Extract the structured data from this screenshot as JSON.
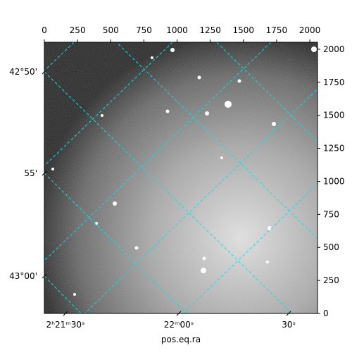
{
  "chart_data": {
    "type": "image",
    "xlabel": "pos.eq.ra",
    "xlim": [
      0,
      2058
    ],
    "ylim": [
      0,
      2053
    ],
    "xticks": [
      0,
      250,
      500,
      750,
      1000,
      1250,
      1500,
      1750,
      2000
    ],
    "yticks": [
      0,
      250,
      500,
      750,
      1000,
      1250,
      1500,
      1750,
      2000
    ],
    "ra_ticks": [
      {
        "value": 159,
        "label": "2ʰ21ᵐ30ˢ"
      },
      {
        "value": 1013,
        "label": "22ᵐ00ˢ"
      },
      {
        "value": 1841,
        "label": "30ˢ"
      }
    ],
    "dec_ticks": [
      {
        "value": 1829,
        "label": "42°50'"
      },
      {
        "value": 1061,
        "label": "55'"
      },
      {
        "value": 283,
        "label": "43°00'"
      }
    ]
  }
}
